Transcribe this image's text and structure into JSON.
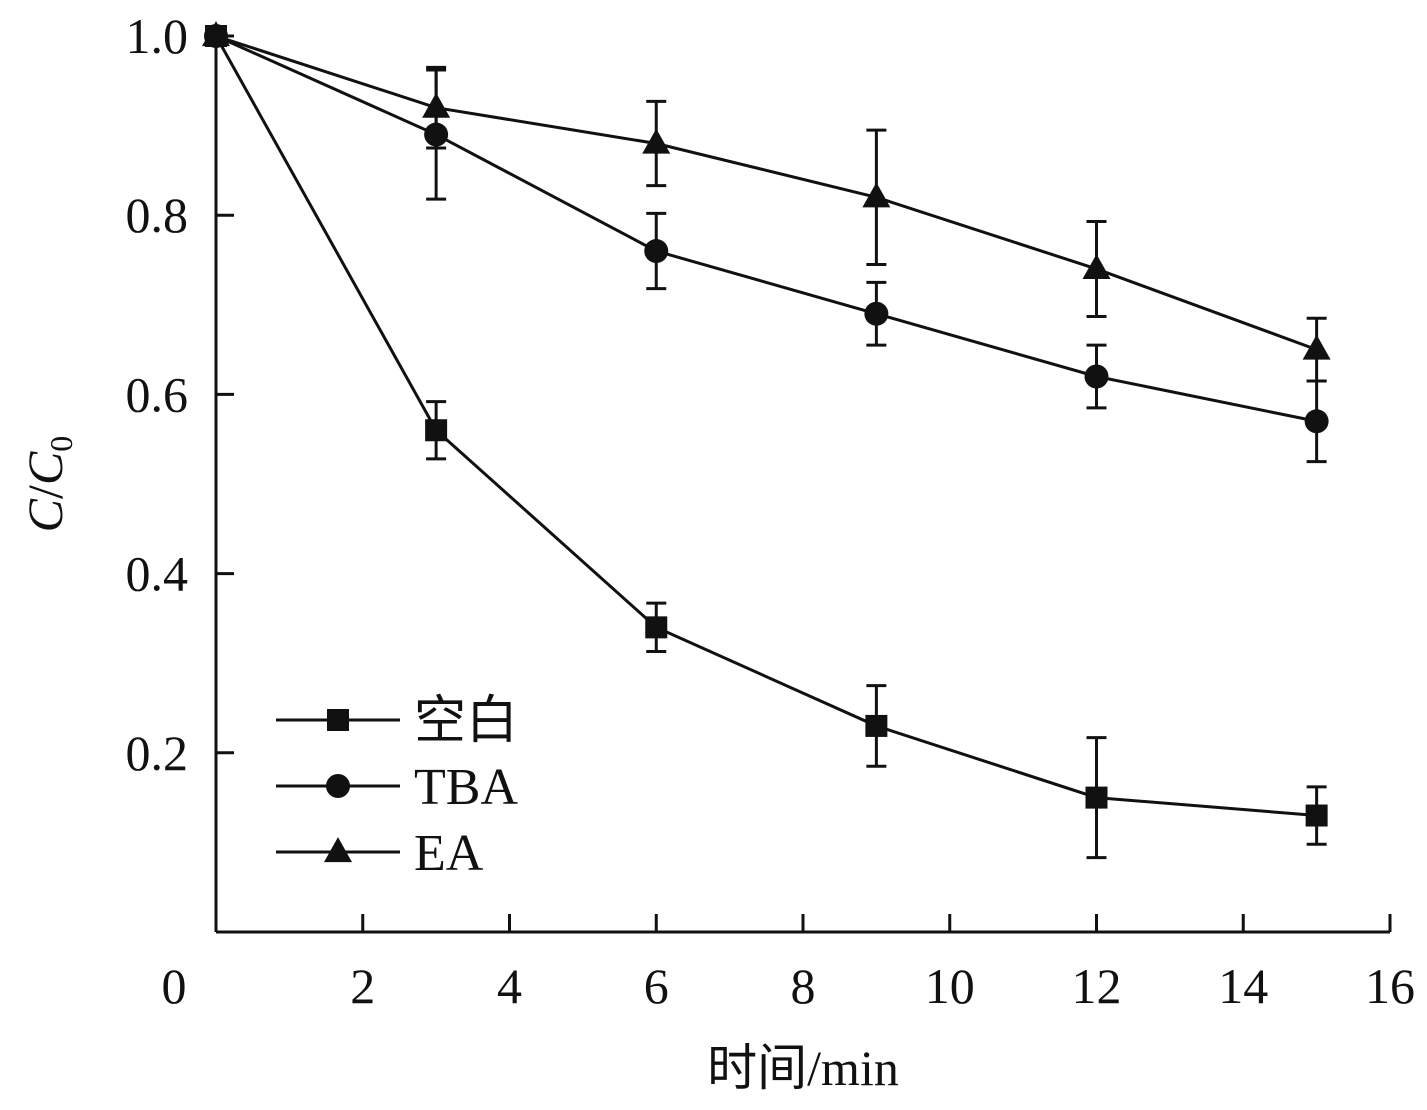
{
  "chart_data": {
    "type": "line",
    "title": "",
    "xlabel": "时间/min",
    "ylabel": {
      "main": "C",
      "slash": "/",
      "sub_main": "C",
      "sub": "0"
    },
    "xlim": [
      0,
      16
    ],
    "ylim": [
      0,
      1.0
    ],
    "x_ticks": [
      0,
      2,
      4,
      6,
      8,
      10,
      12,
      14,
      16
    ],
    "x_tick_labels": [
      "0",
      "2",
      "4",
      "6",
      "8",
      "10",
      "12",
      "14",
      "16"
    ],
    "y_ticks": [
      0.2,
      0.4,
      0.6,
      0.8,
      1.0
    ],
    "y_tick_labels": [
      "0.2",
      "0.4",
      "0.6",
      "0.8",
      "1.0"
    ],
    "grid": false,
    "legend_position": "bottom-left",
    "x": [
      0,
      3,
      6,
      9,
      12,
      15
    ],
    "series": [
      {
        "name": "空白",
        "marker": "square",
        "values": [
          1.0,
          0.56,
          0.34,
          0.23,
          0.15,
          0.13
        ],
        "error": [
          0.0,
          0.032,
          0.027,
          0.045,
          0.067,
          0.032
        ]
      },
      {
        "name": "TBA",
        "marker": "circle",
        "values": [
          1.0,
          0.89,
          0.76,
          0.69,
          0.62,
          0.57
        ],
        "error": [
          0.0,
          0.072,
          0.042,
          0.035,
          0.035,
          0.045
        ]
      },
      {
        "name": "EA",
        "marker": "triangle",
        "values": [
          1.0,
          0.92,
          0.88,
          0.82,
          0.74,
          0.65
        ],
        "error": [
          0.0,
          0.045,
          0.047,
          0.075,
          0.053,
          0.035
        ]
      }
    ],
    "colors": {
      "line": "#111111",
      "background": "#ffffff"
    }
  }
}
